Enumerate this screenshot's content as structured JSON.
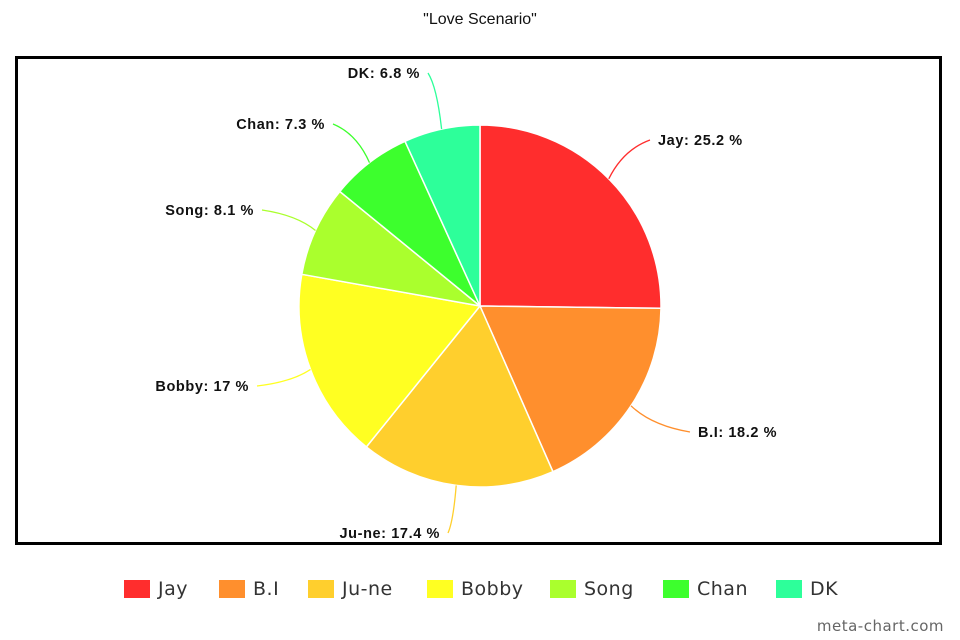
{
  "chart_data": {
    "type": "pie",
    "title": "\"Love Scenario\"",
    "categories": [
      "Jay",
      "B.I",
      "Ju-ne",
      "Bobby",
      "Song",
      "Chan",
      "DK"
    ],
    "values": [
      25.2,
      18.2,
      17.4,
      17,
      8.1,
      7.3,
      6.8
    ],
    "data_labels": [
      "Jay: 25.2 %",
      "B.I: 18.2 %",
      "Ju-ne: 17.4 %",
      "Bobby: 17 %",
      "Song: 8.1 %",
      "Chan: 7.3 %",
      "DK: 6.8 %"
    ],
    "colors": [
      "#ff2d2d",
      "#ff8f2d",
      "#ffcf2d",
      "#ffff22",
      "#aaff2d",
      "#3dff2d",
      "#2dff9a"
    ],
    "legend_position": "bottom"
  },
  "watermark": "meta-chart.com"
}
